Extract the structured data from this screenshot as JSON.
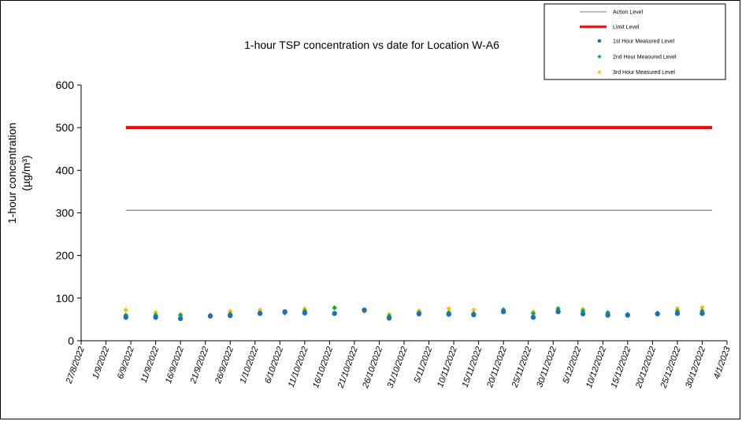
{
  "chart_data": {
    "type": "scatter",
    "title": "1-hour TSP concentration vs date for Location  W-A6",
    "ylabel_line1": "1-hour concentration",
    "ylabel_line2": "(µg/m³)",
    "ylim": [
      0,
      600
    ],
    "yticks": [
      "0",
      "100",
      "200",
      "300",
      "400",
      "500",
      "600"
    ],
    "xticks": [
      "27/8/2022",
      "1/9/2022",
      "6/9/2022",
      "11/9/2022",
      "16/9/2022",
      "21/9/2022",
      "26/9/2022",
      "1/10/2022",
      "6/10/2022",
      "11/10/2022",
      "16/10/2022",
      "21/10/2022",
      "26/10/2022",
      "31/10/2022",
      "5/11/2022",
      "10/11/2022",
      "15/11/2022",
      "20/11/2022",
      "25/11/2022",
      "30/11/2022",
      "5/12/2022",
      "10/12/2022",
      "15/12/2022",
      "20/12/2022",
      "25/12/2022",
      "30/12/2022",
      "4/1/2023"
    ],
    "x_day_range": [
      0,
      130
    ],
    "action_level": {
      "name": "Action Level",
      "value": 306,
      "x_start_day": 9,
      "x_end_day": 127,
      "color": "#808080"
    },
    "limit_level": {
      "name": "Limit Level",
      "value": 500,
      "x_start_day": 9,
      "x_end_day": 127,
      "color": "#ff0000"
    },
    "series": [
      {
        "name": "1st Hour Measured Level",
        "color": "#1f6fbf",
        "days": [
          9,
          15,
          20,
          26,
          30,
          36,
          41,
          45,
          51,
          57,
          62,
          68,
          74,
          79,
          85,
          91,
          96,
          101,
          106,
          110,
          116,
          120,
          125
        ],
        "values": [
          55,
          55,
          52,
          58,
          59,
          64,
          68,
          65,
          64,
          72,
          53,
          63,
          62,
          61,
          68,
          55,
          68,
          63,
          60,
          60,
          63,
          64,
          64
        ]
      },
      {
        "name": "2nd Hour Measured Level",
        "color": "#00b050",
        "days": [
          9,
          15,
          20,
          26,
          30,
          36,
          41,
          45,
          51,
          57,
          62,
          68,
          74,
          79,
          85,
          91,
          96,
          101,
          106,
          110,
          116,
          120,
          125
        ],
        "values": [
          60,
          60,
          60,
          60,
          63,
          66,
          65,
          70,
          77,
          72,
          58,
          66,
          66,
          64,
          73,
          64,
          75,
          70,
          66,
          62,
          65,
          70,
          70
        ]
      },
      {
        "name": "3rd Hour Measured Level",
        "color": "#ffc000",
        "days": [
          9,
          15,
          20,
          26,
          30,
          36,
          41,
          45,
          51,
          57,
          62,
          68,
          74,
          79,
          85,
          91,
          96,
          101,
          106,
          110,
          116,
          120,
          125
        ],
        "values": [
          72,
          66,
          62,
          56,
          69,
          72,
          65,
          75,
          78,
          68,
          62,
          70,
          75,
          72,
          69,
          68,
          76,
          74,
          62,
          62,
          63,
          76,
          78
        ]
      }
    ]
  }
}
